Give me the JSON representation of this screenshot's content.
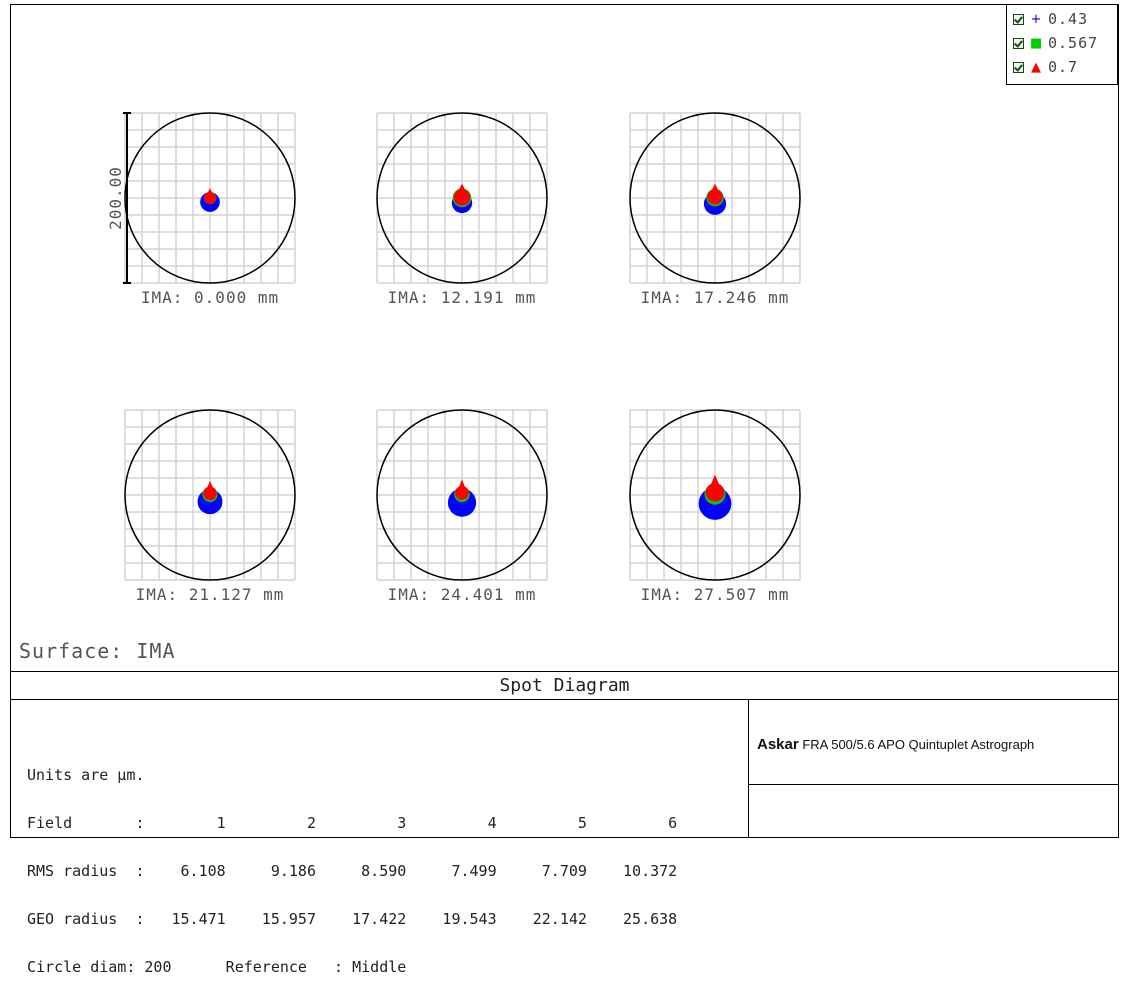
{
  "legend": [
    {
      "symbol": "+",
      "color": "#0000ff",
      "label": "0.43"
    },
    {
      "symbol": "■",
      "color": "#00cc00",
      "label": "0.567"
    },
    {
      "symbol": "▲",
      "color": "#ff0000",
      "label": "0.7"
    }
  ],
  "surface_label": "Surface: IMA",
  "footer": {
    "title": "Spot Diagram",
    "stats_lines": [
      "Units are µm.",
      "Field       :        1         2         3         4         5         6",
      "RMS radius  :    6.108     9.186     8.590     7.499     7.709    10.372",
      "GEO radius  :   15.471    15.957    17.422    19.543    22.142    25.638",
      "Circle diam: 200      Reference   : Middle"
    ],
    "brand_name": "Askar",
    "brand_text": " FRA 500/5.6 APO Quintuplet Astrograph"
  },
  "chart_data": {
    "type": "scatter",
    "title": "Spot Diagram",
    "units": "µm",
    "scale_bar_label": "200.00",
    "circle_diameter": 200,
    "reference": "Middle",
    "wavelengths": [
      "0.43",
      "0.567",
      "0.7"
    ],
    "fields": [
      {
        "field": 1,
        "label": "IMA: 0.000 mm",
        "rms_radius": 6.108,
        "geo_radius": 15.471
      },
      {
        "field": 2,
        "label": "IMA: 12.191 mm",
        "rms_radius": 9.186,
        "geo_radius": 15.957
      },
      {
        "field": 3,
        "label": "IMA: 17.246 mm",
        "rms_radius": 8.59,
        "geo_radius": 17.422
      },
      {
        "field": 4,
        "label": "IMA: 21.127 mm",
        "rms_radius": 7.499,
        "geo_radius": 19.543
      },
      {
        "field": 5,
        "label": "IMA: 24.401 mm",
        "rms_radius": 7.709,
        "geo_radius": 22.142
      },
      {
        "field": 6,
        "label": "IMA: 27.507 mm",
        "rms_radius": 10.372,
        "geo_radius": 25.638
      }
    ],
    "colors": {
      "blue": "#0000ff",
      "green": "#00cc00",
      "red": "#ff0000",
      "grid": "#d4d4d4"
    }
  }
}
